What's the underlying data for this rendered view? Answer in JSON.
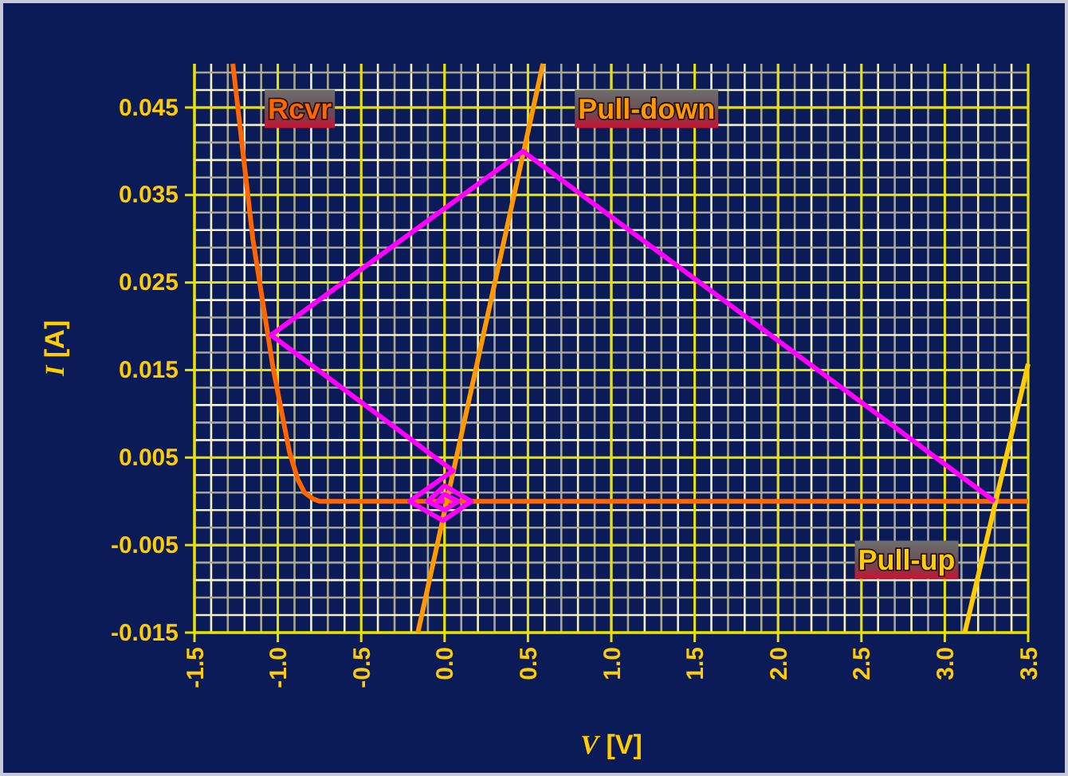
{
  "chart_data": {
    "type": "line",
    "xlabel": "V [V]",
    "ylabel": "I [A]",
    "xlim": [
      -1.5,
      3.5
    ],
    "ylim": [
      -0.015,
      0.05
    ],
    "xticks": [
      {
        "value": -1.5,
        "label": "-1.5"
      },
      {
        "value": -1,
        "label": "-1.0"
      },
      {
        "value": -0.5,
        "label": "-0.5"
      },
      {
        "value": 0,
        "label": "0.0"
      },
      {
        "value": 0.5,
        "label": "0.5"
      },
      {
        "value": 1,
        "label": "1.0"
      },
      {
        "value": 1.5,
        "label": "1.5"
      },
      {
        "value": 2,
        "label": "2.0"
      },
      {
        "value": 2.5,
        "label": "2.5"
      },
      {
        "value": 3,
        "label": "3.0"
      },
      {
        "value": 3.5,
        "label": "3.5"
      }
    ],
    "yticks": [
      -0.015,
      -0.005,
      0.005,
      0.015,
      0.025,
      0.035,
      0.045
    ],
    "grid": true,
    "marker": "none",
    "line_style": "solid",
    "series": [
      {
        "name": "Rcvr",
        "color": "#ff6600",
        "x": [
          -1.27,
          -1.15,
          -1.03,
          -0.97,
          -0.93,
          -0.88,
          -0.84,
          -0.79,
          -0.75,
          3.5
        ],
        "values": [
          0.05,
          0.03,
          0.0154,
          0.0095,
          0.0056,
          0.0025,
          0.001,
          0.0003,
          0,
          0
        ]
      },
      {
        "name": "Pull-down",
        "color": "#ff9900",
        "x": [
          -0.16,
          0.59
        ],
        "values": [
          -0.015,
          0.05
        ]
      },
      {
        "name": "Pull-up",
        "color": "#ffcc00",
        "x": [
          3.12,
          3.5
        ],
        "values": [
          -0.015,
          0.0157
        ]
      },
      {
        "color": "#ff00ff",
        "x": [
          3.3,
          0.47,
          -1.04,
          0.05,
          -0.21,
          -0.01,
          0.16,
          0.0,
          -0.1,
          0.0,
          0.08,
          0.0,
          -0.04,
          0.0
        ],
        "values": [
          0,
          0.04,
          0.019,
          0.0035,
          0,
          -0.0022,
          0,
          0.0018,
          0,
          -0.001,
          0,
          0.0008,
          0,
          0
        ]
      }
    ]
  }
}
